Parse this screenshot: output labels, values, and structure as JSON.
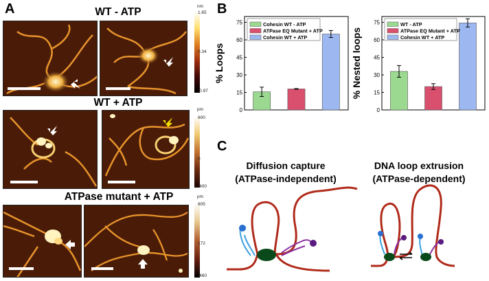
{
  "panels": {
    "a": {
      "letter": "A"
    },
    "b": {
      "letter": "B"
    },
    "c": {
      "letter": "C"
    }
  },
  "afm": {
    "row1_title": "WT - ATP",
    "row2_title": "WT  + ATP",
    "row3_title": "ATPase mutant + ATP",
    "cbar1": {
      "unit": "nm",
      "max": "1.65",
      "mid": "0.34",
      "min": "-0.97"
    },
    "cbar2": {
      "unit": "pm",
      "max": "600",
      "mid": "0",
      "min": "-400"
    },
    "cbar3": {
      "unit": "pm",
      "max": "805",
      "mid": "172",
      "min": "-460"
    }
  },
  "chart_data": [
    {
      "type": "bar",
      "ylabel": "% Loops",
      "ylim": [
        0,
        80
      ],
      "yticks": [
        0,
        15,
        30,
        45,
        60,
        75
      ],
      "categories": [
        "Cohesin WT - ATP",
        "ATPase EQ Mutant + ATP",
        "Cohesin WT + ATP"
      ],
      "values": [
        15.5,
        18.0,
        65.0
      ],
      "errors": [
        4.0,
        0.3,
        3.0
      ],
      "colors": [
        "#9bd890",
        "#d9506f",
        "#9db8f0"
      ],
      "legend": [
        "Cohesin WT - ATP",
        "ATPase EQ Mutant + ATP",
        "Cohesin WT + ATP"
      ]
    },
    {
      "type": "bar",
      "ylabel": "% Nested loops",
      "ylim": [
        0,
        80
      ],
      "yticks": [
        0,
        15,
        30,
        45,
        60,
        75
      ],
      "categories": [
        "WT - ATP",
        "ATPase EQ Mutant + ATP",
        "Cohesin WT + ATP"
      ],
      "values": [
        33.0,
        20.0,
        74.5
      ],
      "errors": [
        5.0,
        2.5,
        3.5
      ],
      "colors": [
        "#9bd890",
        "#d9506f",
        "#9db8f0"
      ],
      "legend": [
        "WT - ATP",
        "ATPase EQ Mutant + ATP",
        "Cohesin WT + ATP"
      ]
    }
  ],
  "mechanisms": {
    "left": {
      "line1": "Diffusion capture",
      "line2": "(ATPase-independent)"
    },
    "right": {
      "line1": "DNA loop extrusion",
      "line2": "(ATPase-dependent)"
    }
  }
}
